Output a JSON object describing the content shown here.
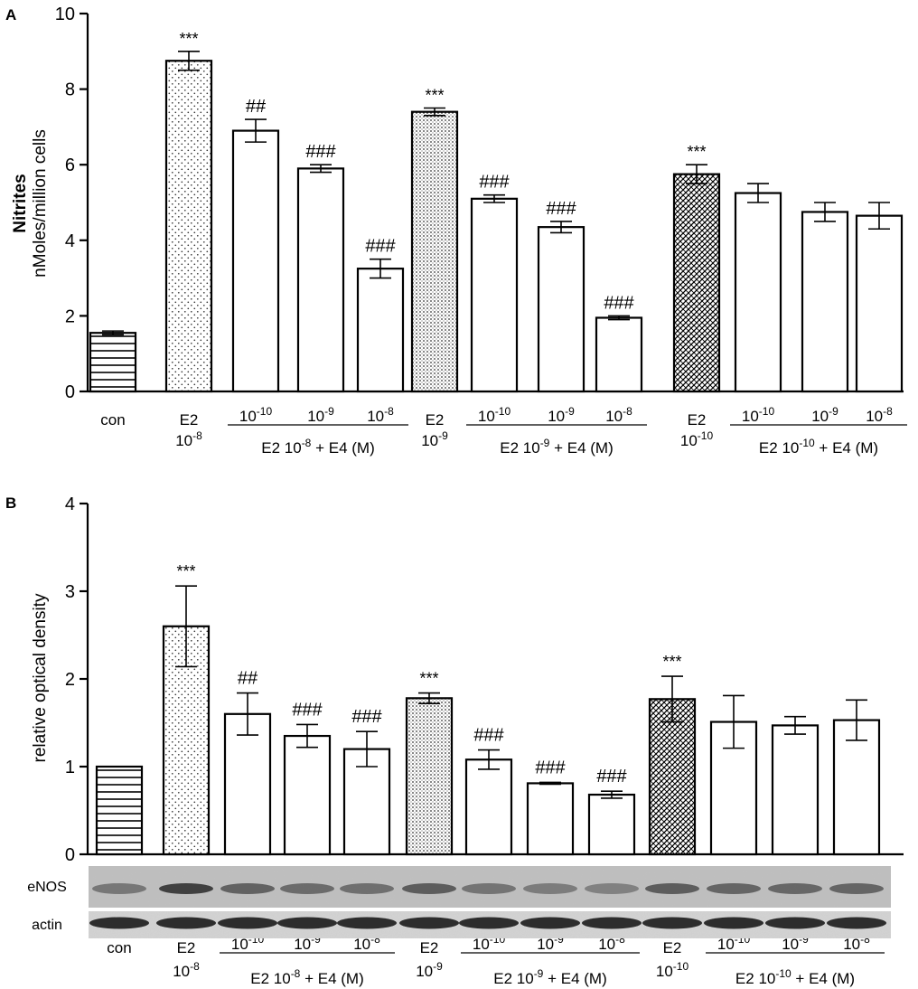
{
  "panels": [
    "A",
    "B"
  ],
  "groups": [
    {
      "label": "E2 10",
      "sup": "-8",
      "tail": " + E4 (M)"
    },
    {
      "label": "E2 10",
      "sup": "-9",
      "tail": " + E4 (M)"
    },
    {
      "label": "E2 10",
      "sup": "-10",
      "tail": " + E4 (M)"
    }
  ],
  "categories": [
    {
      "line1": "con",
      "base": "",
      "sup": ""
    },
    {
      "line1": "E2",
      "base": "10",
      "sup": "-8"
    },
    {
      "line1": "",
      "base": "10",
      "sup": "-10"
    },
    {
      "line1": "",
      "base": "10",
      "sup": "-9"
    },
    {
      "line1": "",
      "base": "10",
      "sup": "-8"
    },
    {
      "line1": "E2",
      "base": "10",
      "sup": "-9"
    },
    {
      "line1": "",
      "base": "10",
      "sup": "-10"
    },
    {
      "line1": "",
      "base": "10",
      "sup": "-9"
    },
    {
      "line1": "",
      "base": "10",
      "sup": "-8"
    },
    {
      "line1": "E2",
      "base": "10",
      "sup": "-10"
    },
    {
      "line1": "",
      "base": "10",
      "sup": "-10"
    },
    {
      "line1": "",
      "base": "10",
      "sup": "-9"
    },
    {
      "line1": "",
      "base": "10",
      "sup": "-8"
    }
  ],
  "blot": {
    "eNOS_label": "eNOS",
    "actin_label": "actin"
  },
  "chart_data": [
    {
      "type": "bar",
      "panel": "A",
      "ylabel_bold": "Nitrites",
      "ylabel": "nMoles/million cells",
      "ylim": [
        0,
        10
      ],
      "yticks": [
        0,
        2,
        4,
        6,
        8,
        10
      ],
      "values": [
        1.55,
        8.75,
        6.9,
        5.9,
        3.25,
        7.4,
        5.1,
        4.35,
        1.95,
        5.75,
        5.25,
        4.75,
        4.65
      ],
      "errors": [
        0.05,
        0.25,
        0.3,
        0.1,
        0.25,
        0.1,
        0.1,
        0.15,
        0.05,
        0.25,
        0.25,
        0.25,
        0.35
      ],
      "annotations": [
        "",
        "***",
        "##",
        "###",
        "###",
        "***",
        "###",
        "###",
        "###",
        "***",
        "",
        "",
        ""
      ]
    },
    {
      "type": "bar",
      "panel": "B",
      "ylabel": "relative optical density",
      "ylim": [
        0,
        4
      ],
      "yticks": [
        0,
        1,
        2,
        3,
        4
      ],
      "values": [
        1.0,
        2.6,
        1.6,
        1.35,
        1.2,
        1.78,
        1.08,
        0.81,
        0.68,
        1.77,
        1.51,
        1.47,
        1.53
      ],
      "errors": [
        0.0,
        0.46,
        0.24,
        0.13,
        0.2,
        0.06,
        0.11,
        0.01,
        0.04,
        0.26,
        0.3,
        0.1,
        0.23
      ],
      "annotations": [
        "",
        "***",
        "##",
        "###",
        "###",
        "***",
        "###",
        "###",
        "###",
        "***",
        "",
        "",
        ""
      ]
    }
  ],
  "fills": [
    "hlines",
    "dots",
    "white",
    "white",
    "white",
    "dots-dense",
    "white",
    "white",
    "white",
    "crosshatch",
    "white",
    "white",
    "white"
  ]
}
